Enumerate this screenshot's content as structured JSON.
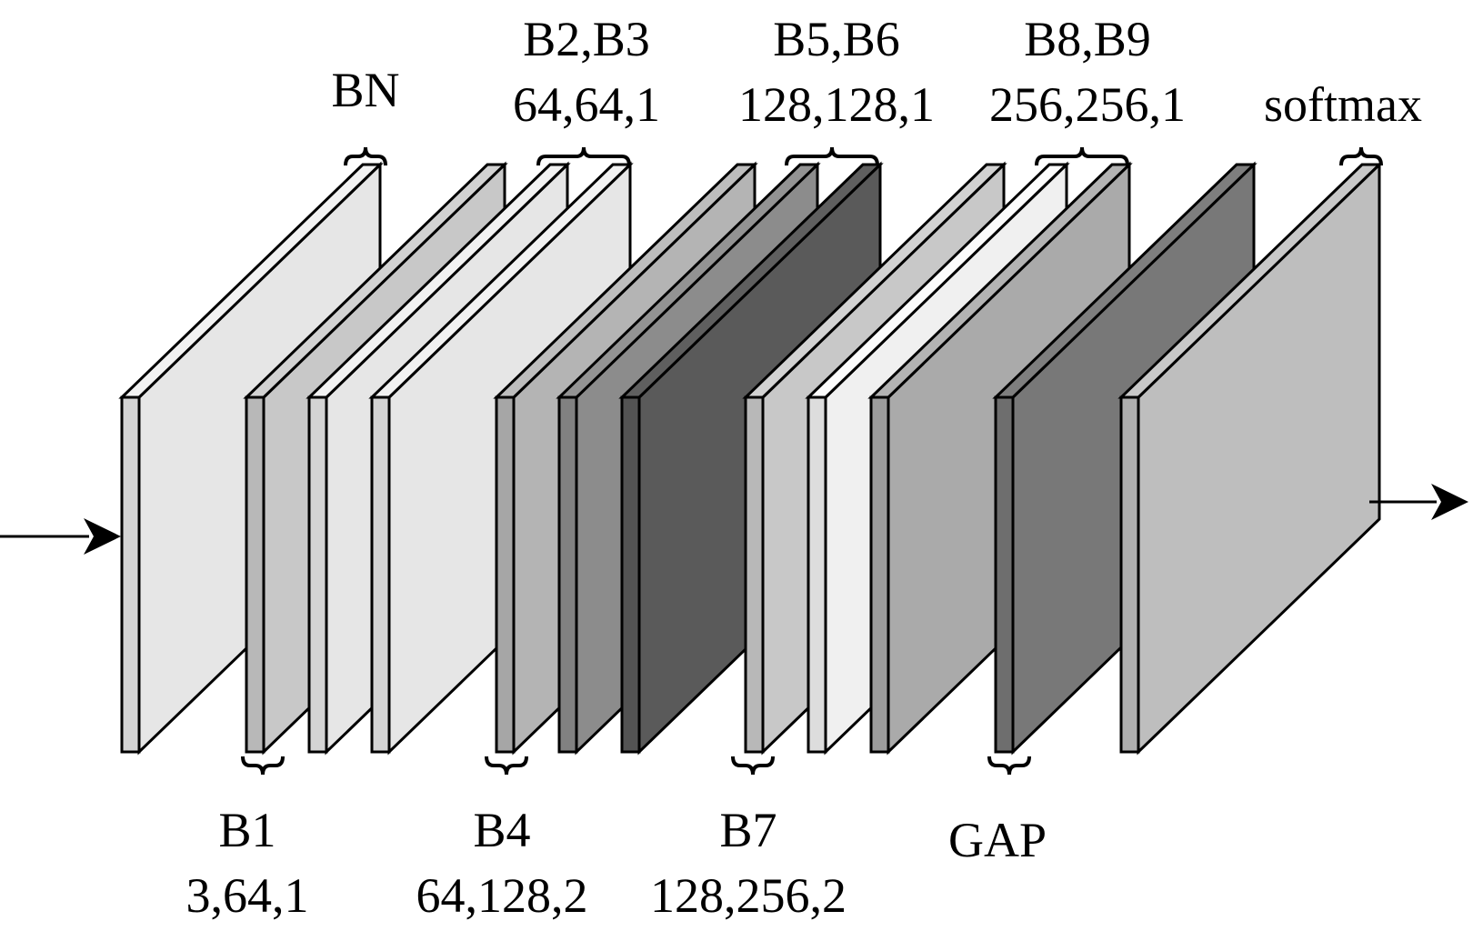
{
  "diagram": {
    "top_labels": {
      "bn": {
        "name": "BN"
      },
      "b2b3": {
        "name": "B2,B3",
        "params": "64,64,1"
      },
      "b5b6": {
        "name": "B5,B6",
        "params": "128,128,1"
      },
      "b8b9": {
        "name": "B8,B9",
        "params": "256,256,1"
      },
      "softmax": {
        "name": "softmax"
      }
    },
    "bottom_labels": {
      "b1": {
        "name": "B1",
        "params": "3,64,1"
      },
      "b4": {
        "name": "B4",
        "params": "64,128,2"
      },
      "b7": {
        "name": "B7",
        "params": "128,256,2"
      },
      "gap": {
        "name": "GAP"
      }
    },
    "layers": [
      {
        "id": "bn",
        "fill": "#e6e6e6"
      },
      {
        "id": "b1",
        "fill": "#c8c8c8"
      },
      {
        "id": "b2",
        "fill": "#e6e6e6"
      },
      {
        "id": "b3",
        "fill": "#e6e6e6"
      },
      {
        "id": "b4",
        "fill": "#b4b4b4"
      },
      {
        "id": "b5",
        "fill": "#8c8c8c"
      },
      {
        "id": "b6",
        "fill": "#5a5a5a"
      },
      {
        "id": "b7",
        "fill": "#c8c8c8"
      },
      {
        "id": "b8",
        "fill": "#f0f0f0"
      },
      {
        "id": "b9",
        "fill": "#aaaaaa"
      },
      {
        "id": "gap",
        "fill": "#787878"
      },
      {
        "id": "softmax",
        "fill": "#bebebe"
      }
    ]
  }
}
